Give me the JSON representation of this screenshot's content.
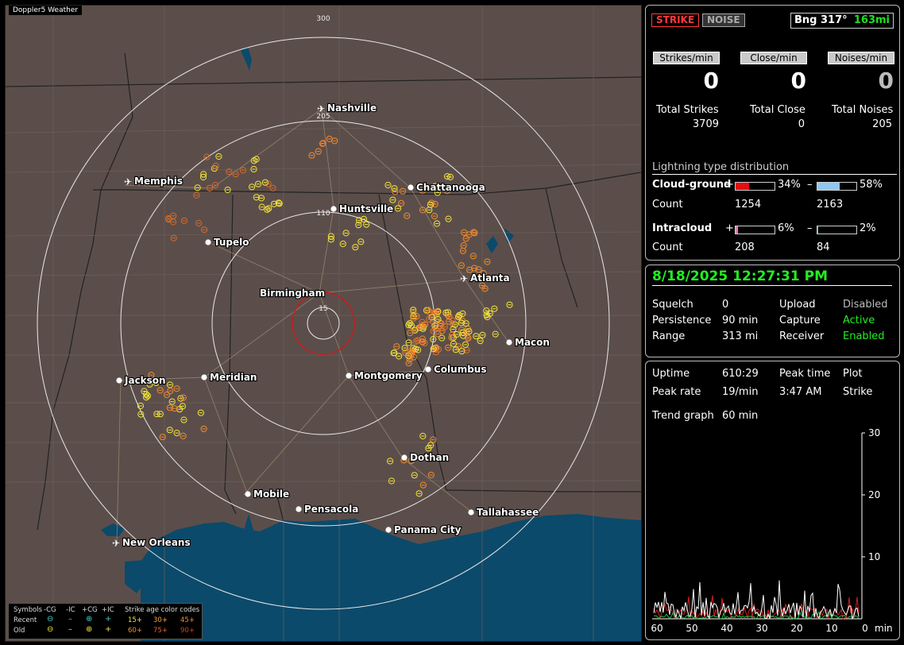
{
  "map": {
    "title": "Doppler5 Weather",
    "ring_labels": [
      "300",
      "205",
      "110",
      "15"
    ],
    "cities": [
      {
        "name": "Nashville",
        "airport": true
      },
      {
        "name": "Memphis",
        "airport": true
      },
      {
        "name": "Chattanooga",
        "airport": false
      },
      {
        "name": "Huntsville",
        "airport": false
      },
      {
        "name": "Tupelo",
        "airport": false
      },
      {
        "name": "Atlanta",
        "airport": true
      },
      {
        "name": "Birmingham",
        "airport": false
      },
      {
        "name": "Macon",
        "airport": false
      },
      {
        "name": "Columbus",
        "airport": false
      },
      {
        "name": "Jackson",
        "airport": false
      },
      {
        "name": "Meridian",
        "airport": false
      },
      {
        "name": "Montgomery",
        "airport": false
      },
      {
        "name": "Dothan",
        "airport": false
      },
      {
        "name": "Mobile",
        "airport": false
      },
      {
        "name": "Pensacola",
        "airport": false
      },
      {
        "name": "Tallahassee",
        "airport": false
      },
      {
        "name": "Panama City",
        "airport": false
      },
      {
        "name": "New Orleans",
        "airport": true
      }
    ],
    "legend": {
      "symbols_label": "Symbols",
      "cols": [
        "-CG",
        "-IC",
        "+CG",
        "+IC"
      ],
      "recent_label": "Recent",
      "old_label": "Old",
      "age_title": "Strike age color codes",
      "recent_ages": [
        "15+",
        "30+",
        "45+"
      ],
      "old_ages": [
        "60+",
        "75+",
        "90+"
      ]
    },
    "colors": {
      "land": "#5b4e4a",
      "water": "#0b4a6b",
      "rings": "#e8e8e8",
      "yellow": "#f2e33a",
      "orange": "#f08a30",
      "dark_orange": "#d46a2a",
      "center_ring": "#d01818"
    }
  },
  "status": {
    "strike_btn": "STRIKE",
    "noise_btn": "NOISE",
    "bearing_label": "Bng 317°",
    "distance": "163mi",
    "rates": [
      {
        "label": "Strikes/min",
        "value": "0",
        "total_label": "Total Strikes",
        "total": "3709"
      },
      {
        "label": "Close/min",
        "value": "0",
        "total_label": "Total Close",
        "total": "0"
      },
      {
        "label": "Noises/min",
        "value": "0",
        "total_label": "Total Noises",
        "total": "205"
      }
    ],
    "dist_title": "Lightning type distribution",
    "cg": {
      "label": "Cloud-ground",
      "pos_pct": "34%",
      "neg_pct": "58%",
      "pos_frac": 0.34,
      "neg_frac": 0.58,
      "count_label": "Count",
      "pos_count": "1254",
      "neg_count": "2163"
    },
    "ic": {
      "label": "Intracloud",
      "pos_pct": "6%",
      "neg_pct": "2%",
      "pos_frac": 0.06,
      "neg_frac": 0.02,
      "count_label": "Count",
      "pos_count": "208",
      "neg_count": "84"
    },
    "plus": "+",
    "minus": "–"
  },
  "info": {
    "datetime": "8/18/2025 12:27:31 PM",
    "rows": [
      {
        "k1": "Squelch",
        "v1": "0",
        "k2": "Upload",
        "v2": "Disabled"
      },
      {
        "k1": "Persistence",
        "v1": "90 min",
        "k2": "Capture",
        "v2": "Active"
      },
      {
        "k1": "Range",
        "v1": "313 mi",
        "k2": "Receiver",
        "v2": "Enabled"
      }
    ]
  },
  "trend": {
    "uptime_label": "Uptime",
    "uptime": "610:29",
    "peak_time_label": "Peak time",
    "plot_label": "Plot",
    "peak_rate_label": "Peak rate",
    "peak_rate": "19/min",
    "peak_time": "3:47 AM",
    "plot": "Strike",
    "trend_label": "Trend graph",
    "trend_window": "60 min",
    "y_ticks": [
      "30",
      "20",
      "10"
    ],
    "x_ticks": [
      "60",
      "50",
      "40",
      "30",
      "20",
      "10",
      "0"
    ],
    "x_unit": "min"
  }
}
